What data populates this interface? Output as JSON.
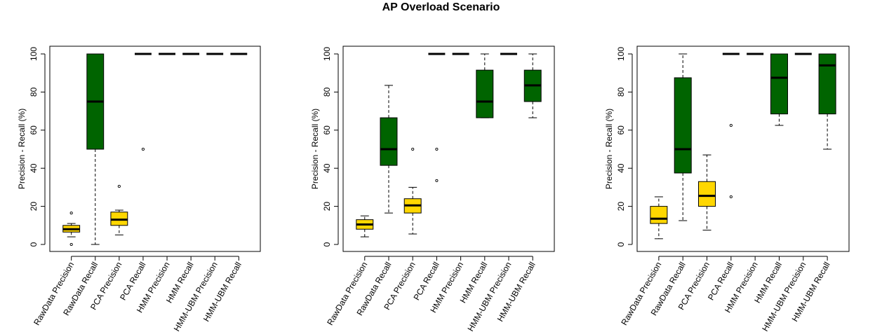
{
  "title": "AP Overload Scenario",
  "colors": {
    "precision": "#FFD700",
    "recall": "#006400",
    "line": "#000000"
  },
  "chart_data": [
    {
      "type": "box",
      "ylabel": "Precision - Recall (%)",
      "ylim": [
        0,
        100
      ],
      "yticks": [
        0,
        20,
        40,
        60,
        80,
        100
      ],
      "categories": [
        "RawData Precision",
        "RawData Recall",
        "PCA Precision",
        "PCA Recall",
        "HMM Precision",
        "HMM Recall",
        "HMM-UBM Precision",
        "HMM-UBM Recall"
      ],
      "boxes": [
        {
          "kind": "precision",
          "wlo": 4,
          "q1": 6.5,
          "med": 8,
          "q3": 10,
          "whi": 11,
          "outliers": [
            0,
            16.5
          ]
        },
        {
          "kind": "recall",
          "wlo": 0,
          "q1": 50,
          "med": 75,
          "q3": 100,
          "whi": 100,
          "outliers": []
        },
        {
          "kind": "precision",
          "wlo": 5,
          "q1": 10,
          "med": 13,
          "q3": 17,
          "whi": 18,
          "outliers": [
            30.5
          ]
        },
        {
          "kind": "recall",
          "wlo": 100,
          "q1": 100,
          "med": 100,
          "q3": 100,
          "whi": 100,
          "outliers": [
            50
          ]
        },
        {
          "kind": "precision",
          "wlo": 100,
          "q1": 100,
          "med": 100,
          "q3": 100,
          "whi": 100,
          "outliers": []
        },
        {
          "kind": "recall",
          "wlo": 100,
          "q1": 100,
          "med": 100,
          "q3": 100,
          "whi": 100,
          "outliers": []
        },
        {
          "kind": "precision",
          "wlo": 100,
          "q1": 100,
          "med": 100,
          "q3": 100,
          "whi": 100,
          "outliers": []
        },
        {
          "kind": "recall",
          "wlo": 100,
          "q1": 100,
          "med": 100,
          "q3": 100,
          "whi": 100,
          "outliers": []
        }
      ]
    },
    {
      "type": "box",
      "ylabel": "Precision - Recall (%)",
      "ylim": [
        0,
        100
      ],
      "yticks": [
        0,
        20,
        40,
        60,
        80,
        100
      ],
      "categories": [
        "RawData Precision",
        "RawData Recall",
        "PCA Precision",
        "PCA Recall",
        "HMM Precision",
        "HMM Recall",
        "HMM-UBM Precision",
        "HMM-UBM Recall"
      ],
      "boxes": [
        {
          "kind": "precision",
          "wlo": 4,
          "q1": 8,
          "med": 10.5,
          "q3": 13,
          "whi": 15,
          "outliers": []
        },
        {
          "kind": "recall",
          "wlo": 16.5,
          "q1": 41.5,
          "med": 50,
          "q3": 66.5,
          "whi": 83.5,
          "outliers": []
        },
        {
          "kind": "precision",
          "wlo": 5.5,
          "q1": 16.5,
          "med": 20.5,
          "q3": 24,
          "whi": 30,
          "outliers": [
            50
          ]
        },
        {
          "kind": "recall",
          "wlo": 100,
          "q1": 100,
          "med": 100,
          "q3": 100,
          "whi": 100,
          "outliers": [
            50,
            33.5
          ]
        },
        {
          "kind": "precision",
          "wlo": 100,
          "q1": 100,
          "med": 100,
          "q3": 100,
          "whi": 100,
          "outliers": []
        },
        {
          "kind": "recall",
          "wlo": 66.5,
          "q1": 66.5,
          "med": 75,
          "q3": 91.5,
          "whi": 100,
          "outliers": []
        },
        {
          "kind": "precision",
          "wlo": 100,
          "q1": 100,
          "med": 100,
          "q3": 100,
          "whi": 100,
          "outliers": []
        },
        {
          "kind": "recall",
          "wlo": 66.5,
          "q1": 75,
          "med": 83.5,
          "q3": 91.5,
          "whi": 100,
          "outliers": []
        }
      ]
    },
    {
      "type": "box",
      "ylabel": "Precision - Recall (%)",
      "ylim": [
        0,
        100
      ],
      "yticks": [
        0,
        20,
        40,
        60,
        80,
        100
      ],
      "categories": [
        "RawData Precision",
        "RawData Recall",
        "PCA Precision",
        "PCA Recall",
        "HMM Precision",
        "HMM Recall",
        "HMM-UBM Precision",
        "HMM-UBM Recall"
      ],
      "boxes": [
        {
          "kind": "precision",
          "wlo": 3,
          "q1": 11,
          "med": 13.5,
          "q3": 20,
          "whi": 25,
          "outliers": []
        },
        {
          "kind": "recall",
          "wlo": 12.5,
          "q1": 37.5,
          "med": 50,
          "q3": 87.5,
          "whi": 100,
          "outliers": []
        },
        {
          "kind": "precision",
          "wlo": 7.5,
          "q1": 20,
          "med": 25.5,
          "q3": 33,
          "whi": 47,
          "outliers": []
        },
        {
          "kind": "recall",
          "wlo": 100,
          "q1": 100,
          "med": 100,
          "q3": 100,
          "whi": 100,
          "outliers": [
            62.5,
            25
          ]
        },
        {
          "kind": "precision",
          "wlo": 100,
          "q1": 100,
          "med": 100,
          "q3": 100,
          "whi": 100,
          "outliers": []
        },
        {
          "kind": "recall",
          "wlo": 62.5,
          "q1": 68.5,
          "med": 87.5,
          "q3": 100,
          "whi": 100,
          "outliers": []
        },
        {
          "kind": "precision",
          "wlo": 100,
          "q1": 100,
          "med": 100,
          "q3": 100,
          "whi": 100,
          "outliers": []
        },
        {
          "kind": "recall",
          "wlo": 50,
          "q1": 68.5,
          "med": 94,
          "q3": 100,
          "whi": 100,
          "outliers": []
        }
      ]
    }
  ]
}
